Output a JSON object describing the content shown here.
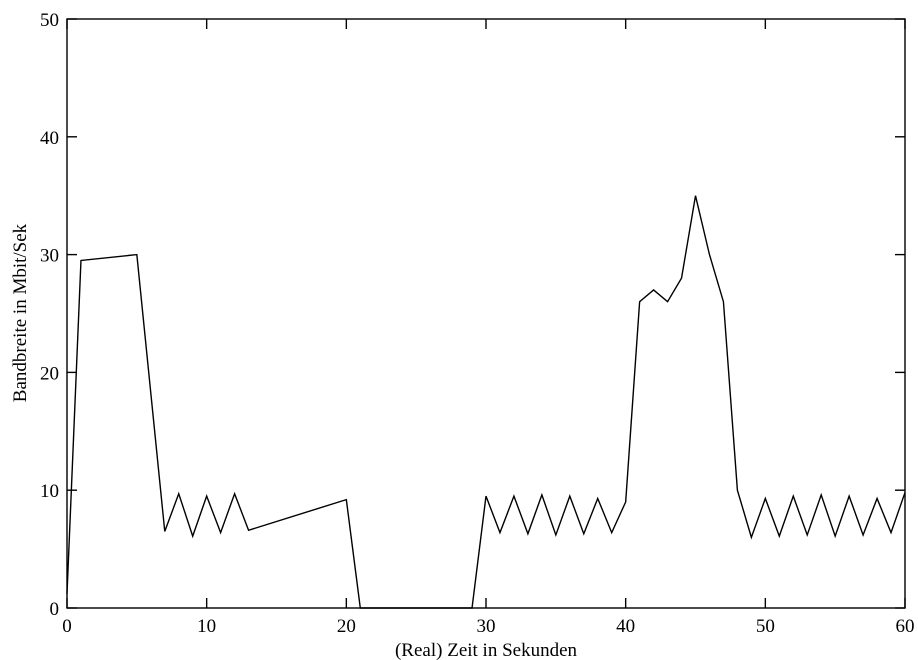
{
  "chart_data": {
    "type": "line",
    "title": "",
    "xlabel": "(Real) Zeit in Sekunden",
    "ylabel": "Bandbreite in Mbit/Sek",
    "xlim": [
      0,
      60
    ],
    "ylim": [
      0,
      50
    ],
    "xticks": [
      0,
      10,
      20,
      30,
      40,
      50,
      60
    ],
    "yticks": [
      0,
      10,
      20,
      30,
      40,
      50
    ],
    "xtick_labels": [
      "0",
      "10",
      "20",
      "30",
      "40",
      "50",
      "60"
    ],
    "ytick_labels": [
      "0",
      "10",
      "20",
      "30",
      "40",
      "50"
    ],
    "grid": false,
    "line_color": "#000000",
    "series": [
      {
        "points": [
          [
            0,
            1.2
          ],
          [
            1,
            29.5
          ],
          [
            5,
            30
          ],
          [
            7,
            6.5
          ],
          [
            8,
            9.7
          ],
          [
            9,
            6.1
          ],
          [
            10,
            9.5
          ],
          [
            11,
            6.4
          ],
          [
            12,
            9.7
          ],
          [
            13,
            6.6
          ],
          [
            20,
            9.2
          ],
          [
            21,
            0
          ],
          [
            29,
            0
          ],
          [
            30,
            9.5
          ],
          [
            31,
            6.4
          ],
          [
            32,
            9.5
          ],
          [
            33,
            6.3
          ],
          [
            34,
            9.6
          ],
          [
            35,
            6.2
          ],
          [
            36,
            9.5
          ],
          [
            37,
            6.3
          ],
          [
            38,
            9.3
          ],
          [
            39,
            6.4
          ],
          [
            40,
            9.0
          ],
          [
            41,
            26
          ],
          [
            42,
            27
          ],
          [
            43,
            26
          ],
          [
            44,
            28
          ],
          [
            45,
            35
          ],
          [
            46,
            30
          ],
          [
            47,
            26
          ],
          [
            48,
            10
          ],
          [
            49,
            6.0
          ],
          [
            50,
            9.3
          ],
          [
            51,
            6.1
          ],
          [
            52,
            9.5
          ],
          [
            53,
            6.2
          ],
          [
            54,
            9.6
          ],
          [
            55,
            6.1
          ],
          [
            56,
            9.5
          ],
          [
            57,
            6.2
          ],
          [
            58,
            9.3
          ],
          [
            59,
            6.4
          ],
          [
            60,
            9.8
          ]
        ]
      }
    ]
  }
}
